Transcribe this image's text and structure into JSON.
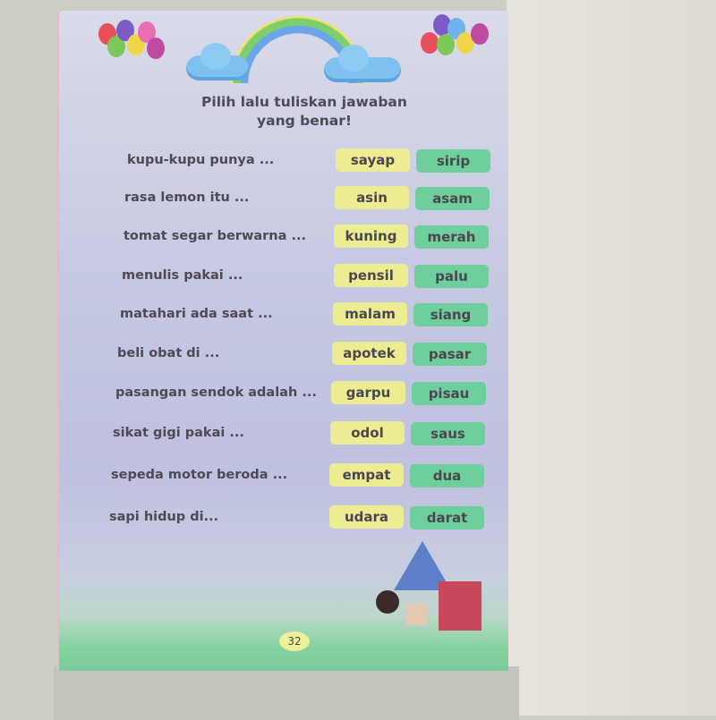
{
  "page": {
    "title_line1": "Pilih lalu tuliskan jawaban",
    "title_line2": "yang benar!",
    "page_number": "32",
    "questions": [
      {
        "text": "kupu-kupu punya ...",
        "option_a": "sayap",
        "option_b": "sirip"
      },
      {
        "text": "rasa lemon itu ...",
        "option_a": "asin",
        "option_b": "asam"
      },
      {
        "text": "tomat segar berwarna ...",
        "option_a": "kuning",
        "option_b": "merah"
      },
      {
        "text": "menulis pakai ...",
        "option_a": "pensil",
        "option_b": "palu"
      },
      {
        "text": "matahari ada saat ...",
        "option_a": "malam",
        "option_b": "siang"
      },
      {
        "text": "beli obat di ...",
        "option_a": "apotek",
        "option_b": "pasar"
      },
      {
        "text": "pasangan sendok adalah ...",
        "option_a": "garpu",
        "option_b": "pisau"
      },
      {
        "text": "sikat gigi pakai ...",
        "option_a": "odol",
        "option_b": "saus"
      },
      {
        "text": "sepeda motor beroda ...",
        "option_a": "empat",
        "option_b": "dua"
      },
      {
        "text": "sapi hidup di...",
        "option_a": "udara",
        "option_b": "darat"
      }
    ]
  },
  "colors": {
    "option_a": "#ecec92",
    "option_b": "#6fcf9c",
    "text": "#4d4a55"
  }
}
